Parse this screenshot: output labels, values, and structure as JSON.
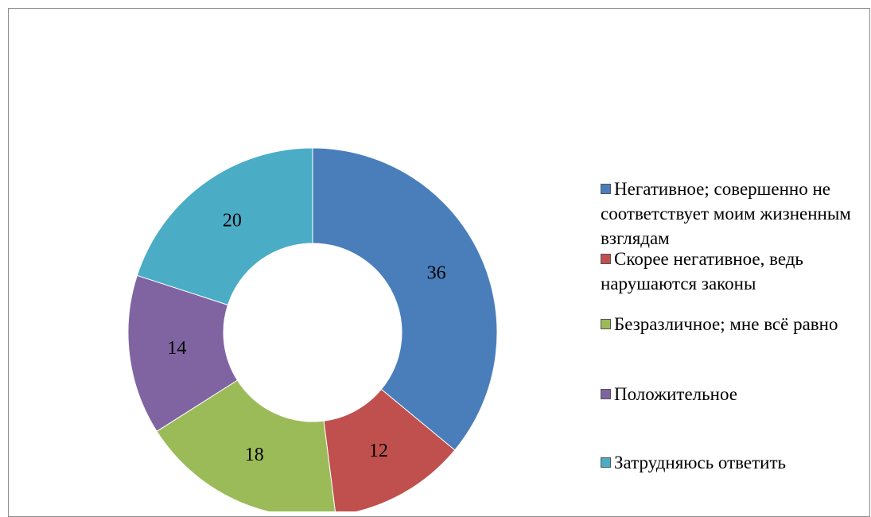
{
  "chart_data": {
    "type": "pie",
    "categories": [
      "Негативное; совершенно не соответствует моим жизненным взглядам",
      "Скорее негативное, ведь нарушаются законы",
      "Безразличное; мне всё равно",
      "Положительное",
      "Затрудняюсь ответить"
    ],
    "values": [
      36,
      12,
      18,
      14,
      20
    ],
    "colors": [
      "#4a7ebb",
      "#c0504d",
      "#9bbb59",
      "#8064a2",
      "#4bacc6"
    ],
    "legend": "right"
  }
}
